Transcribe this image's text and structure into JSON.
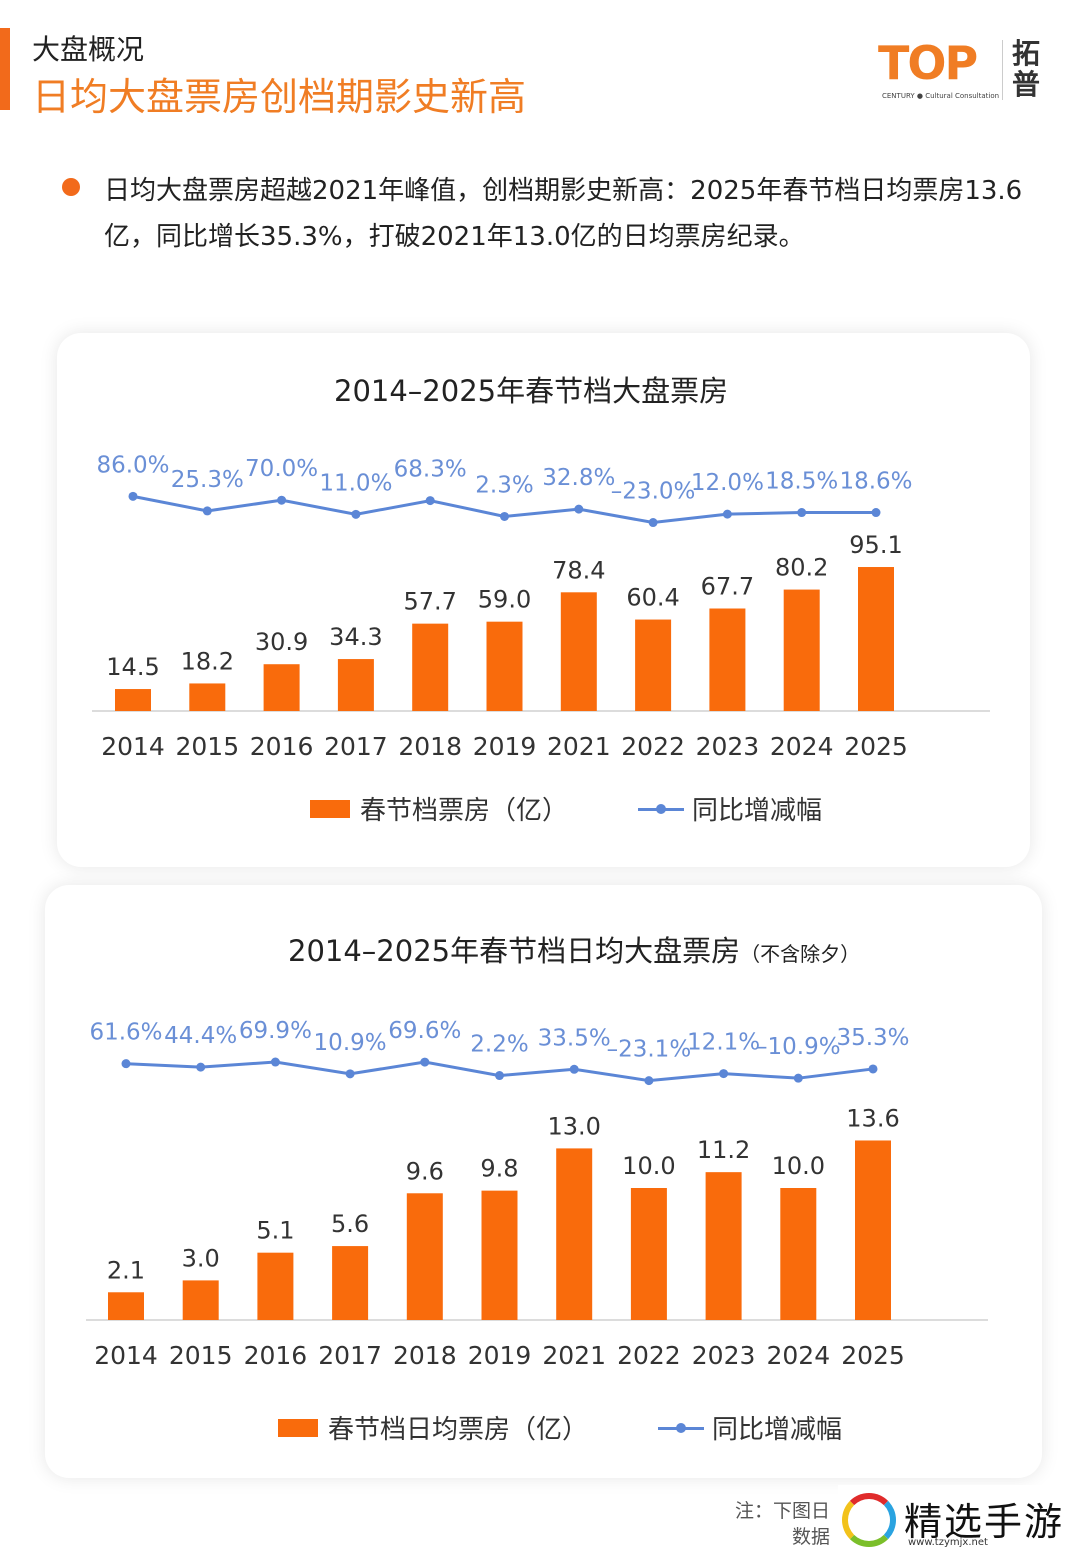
{
  "header": {
    "section": "大盘概况",
    "title": "日均大盘票房创档期影史新高"
  },
  "logo": {
    "text": "TOP",
    "subtitle": "CENTURY ● Cultural Consultation",
    "cn": "拓普"
  },
  "bullet": "日均大盘票房超越2021年峰值，创档期影史新高：2025年春节档日均票房13.6亿，同比增长35.3%，打破2021年13.0亿的日均票房纪录。",
  "colors": {
    "bar": "#f96b0c",
    "line": "#5b86d6",
    "accent": "#f26a1b"
  },
  "chart_data": [
    {
      "type": "bar+line",
      "title": "2014–2025年春节档大盘票房",
      "categories": [
        "2014",
        "2015",
        "2016",
        "2017",
        "2018",
        "2019",
        "2021",
        "2022",
        "2023",
        "2024",
        "2025"
      ],
      "series": [
        {
          "name": "春节档票房（亿）",
          "type": "bar",
          "values": [
            14.5,
            18.2,
            30.9,
            34.3,
            57.7,
            59.0,
            78.4,
            60.4,
            67.7,
            80.2,
            95.1
          ],
          "labels": [
            "14.5",
            "18.2",
            "30.9",
            "34.3",
            "57.7",
            "59.0",
            "78.4",
            "60.4",
            "67.7",
            "80.2",
            "95.1"
          ]
        },
        {
          "name": "同比增减幅",
          "type": "line",
          "values": [
            86.0,
            25.3,
            70.0,
            11.0,
            68.3,
            2.3,
            32.8,
            -23.0,
            12.0,
            18.5,
            18.6
          ],
          "labels": [
            "86.0%",
            "25.3%",
            "70.0%",
            "11.0%",
            "68.3%",
            "2.3%",
            "32.8%",
            "–23.0%",
            "12.0%",
            "18.5%",
            "18.6%"
          ]
        }
      ],
      "legend": "bottom",
      "grid": false
    },
    {
      "type": "bar+line",
      "title": "2014–2025年春节档日均大盘票房",
      "title_note": "（不含除夕）",
      "categories": [
        "2014",
        "2015",
        "2016",
        "2017",
        "2018",
        "2019",
        "2021",
        "2022",
        "2023",
        "2024",
        "2025"
      ],
      "series": [
        {
          "name": "春节档日均票房（亿）",
          "type": "bar",
          "values": [
            2.1,
            3.0,
            5.1,
            5.6,
            9.6,
            9.8,
            13.0,
            10.0,
            11.2,
            10.0,
            13.6
          ],
          "labels": [
            "2.1",
            "3.0",
            "5.1",
            "5.6",
            "9.6",
            "9.8",
            "13.0",
            "10.0",
            "11.2",
            "10.0",
            "13.6"
          ]
        },
        {
          "name": "同比增减幅",
          "type": "line",
          "values": [
            61.6,
            44.4,
            69.9,
            10.9,
            69.6,
            2.2,
            33.5,
            -23.1,
            12.1,
            -10.9,
            35.3
          ],
          "labels": [
            "61.6%",
            "44.4%",
            "69.9%",
            "10.9%",
            "69.6%",
            "2.2%",
            "33.5%",
            "–23.1%",
            "12.1%",
            "–10.9%",
            "35.3%"
          ]
        }
      ],
      "legend": "bottom",
      "grid": false
    }
  ],
  "note": {
    "line1": "注：下图日",
    "line2": "数据"
  },
  "watermark": {
    "text": "精选手游网",
    "url": "www.tzymjx.net"
  }
}
